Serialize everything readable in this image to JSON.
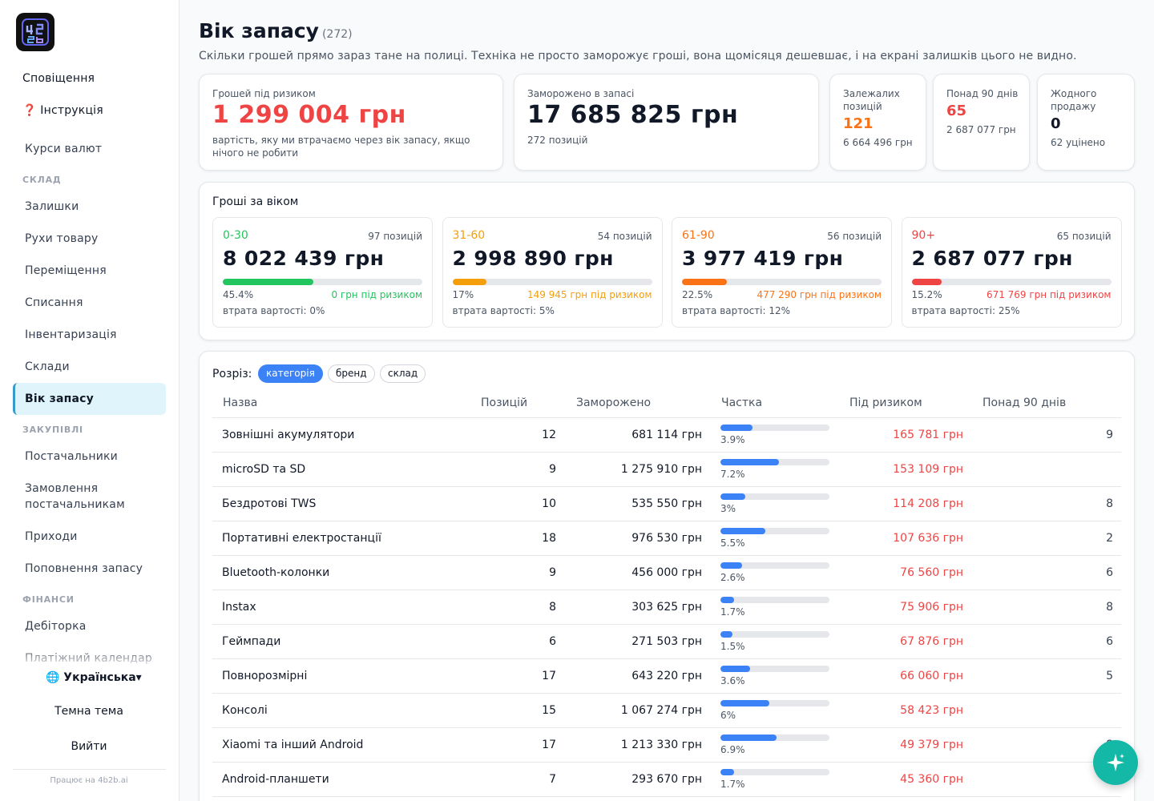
{
  "sidebar": {
    "top_items": [
      {
        "label": "Сповіщення"
      },
      {
        "label": "❓ Інструкція"
      },
      {
        "label": "Курси валют"
      }
    ],
    "sections": [
      {
        "title": "СКЛАД",
        "items": [
          {
            "label": "Залишки",
            "active": false
          },
          {
            "label": "Рухи товару",
            "active": false
          },
          {
            "label": "Переміщення",
            "active": false
          },
          {
            "label": "Списання",
            "active": false
          },
          {
            "label": "Інвентаризація",
            "active": false
          },
          {
            "label": "Склади",
            "active": false
          },
          {
            "label": "Вік запасу",
            "active": true
          }
        ]
      },
      {
        "title": "ЗАКУПІВЛІ",
        "items": [
          {
            "label": "Постачальники",
            "active": false
          },
          {
            "label": "Замовлення постачальникам",
            "active": false
          },
          {
            "label": "Приходи",
            "active": false
          },
          {
            "label": "Поповнення запасу",
            "active": false
          }
        ]
      },
      {
        "title": "ФІНАНСИ",
        "items": [
          {
            "label": "Дебіторка",
            "active": false
          },
          {
            "label": "Платіжний календар",
            "active": false
          }
        ]
      }
    ],
    "language": "🌐 Українська▾",
    "theme": "Темна тема",
    "logout": "Вийти",
    "powered": "Працює на 4b2b.ai"
  },
  "page": {
    "title": "Вік запасу",
    "count": "(272)",
    "subtitle": "Скільки грошей прямо зараз тане на полиці. Техніка не просто заморожує гроші, вона щомісяця дешевшає, і на екрані залишків цього не видно."
  },
  "kpi": {
    "risk": {
      "label": "Грошей під ризиком",
      "value": "1 299 004 грн",
      "note": "вартість, яку ми втрачаємо через вік запасу, якщо нічого не робити"
    },
    "frozen": {
      "label": "Заморожено в запасі",
      "value": "17 685 825 грн",
      "note": "272 позицій"
    },
    "stale": {
      "label": "Залежалих позицій",
      "value": "121",
      "note": "6 664 496 грн"
    },
    "over90": {
      "label": "Понад 90 днів",
      "value": "65",
      "note": "2 687 077 грн"
    },
    "nosale": {
      "label": "Жодного продажу",
      "value": "0",
      "note": "62 уцінено"
    }
  },
  "age": {
    "title": "Гроші за віком",
    "buckets": [
      {
        "range": "0-30",
        "positions": "97 позицій",
        "amount": "8 022 439 грн",
        "share": 45.4,
        "share_label": "45.4%",
        "risk": "0 грн під ризиком",
        "loss": "втрата вартості: 0%",
        "color": "#22c55e"
      },
      {
        "range": "31-60",
        "positions": "54 позицій",
        "amount": "2 998 890 грн",
        "share": 17,
        "share_label": "17%",
        "risk": "149 945 грн під ризиком",
        "loss": "втрата вартості: 5%",
        "color": "#f59e0b"
      },
      {
        "range": "61-90",
        "positions": "56 позицій",
        "amount": "3 977 419 грн",
        "share": 22.5,
        "share_label": "22.5%",
        "risk": "477 290 грн під ризиком",
        "loss": "втрата вартості: 12%",
        "color": "#f97316"
      },
      {
        "range": "90+",
        "positions": "65 позицій",
        "amount": "2 687 077 грн",
        "share": 15.2,
        "share_label": "15.2%",
        "risk": "671 769 грн під ризиком",
        "loss": "втрата вартості: 25%",
        "color": "#ef4444"
      }
    ]
  },
  "table": {
    "cut_label": "Розріз:",
    "chips": [
      {
        "label": "категорія",
        "active": true
      },
      {
        "label": "бренд",
        "active": false
      },
      {
        "label": "склад",
        "active": false
      }
    ],
    "headers": {
      "name": "Назва",
      "positions": "Позицій",
      "frozen": "Заморожено",
      "share": "Частка",
      "risk": "Під ризиком",
      "over90": "Понад 90 днів"
    },
    "rows": [
      {
        "name": "Зовнішні акумулятори",
        "positions": "12",
        "frozen": "681 114 грн",
        "share": 3.9,
        "share_label": "3.9%",
        "risk": "165 781 грн",
        "over90": "9"
      },
      {
        "name": "microSD та SD",
        "positions": "9",
        "frozen": "1 275 910 грн",
        "share": 7.2,
        "share_label": "7.2%",
        "risk": "153 109 грн",
        "over90": ""
      },
      {
        "name": "Бездротові TWS",
        "positions": "10",
        "frozen": "535 550 грн",
        "share": 3,
        "share_label": "3%",
        "risk": "114 208 грн",
        "over90": "8"
      },
      {
        "name": "Портативні електростанції",
        "positions": "18",
        "frozen": "976 530 грн",
        "share": 5.5,
        "share_label": "5.5%",
        "risk": "107 636 грн",
        "over90": "2"
      },
      {
        "name": "Bluetooth-колонки",
        "positions": "9",
        "frozen": "456 000 грн",
        "share": 2.6,
        "share_label": "2.6%",
        "risk": "76 560 грн",
        "over90": "6"
      },
      {
        "name": "Instax",
        "positions": "8",
        "frozen": "303 625 грн",
        "share": 1.7,
        "share_label": "1.7%",
        "risk": "75 906 грн",
        "over90": "8"
      },
      {
        "name": "Геймпади",
        "positions": "6",
        "frozen": "271 503 грн",
        "share": 1.5,
        "share_label": "1.5%",
        "risk": "67 876 грн",
        "over90": "6"
      },
      {
        "name": "Повнорозмірні",
        "positions": "17",
        "frozen": "643 220 грн",
        "share": 3.6,
        "share_label": "3.6%",
        "risk": "66 060 грн",
        "over90": "5"
      },
      {
        "name": "Консолі",
        "positions": "15",
        "frozen": "1 067 274 грн",
        "share": 6,
        "share_label": "6%",
        "risk": "58 423 грн",
        "over90": ""
      },
      {
        "name": "Xiaomi та інший Android",
        "positions": "17",
        "frozen": "1 213 330 грн",
        "share": 6.9,
        "share_label": "6.9%",
        "risk": "49 379 грн",
        "over90": "8"
      },
      {
        "name": "Android-планшети",
        "positions": "7",
        "frozen": "293 670 грн",
        "share": 1.7,
        "share_label": "1.7%",
        "risk": "45 360 грн",
        "over90": ""
      }
    ]
  },
  "colors": {
    "risk": "#ef4444",
    "accent": "#3b82f6",
    "stale": "#f97316",
    "active_nav": "#e0f4fb",
    "fab": "#14b8a6"
  },
  "icons": {
    "fab": "sparkle-icon",
    "logo": "app-logo"
  }
}
